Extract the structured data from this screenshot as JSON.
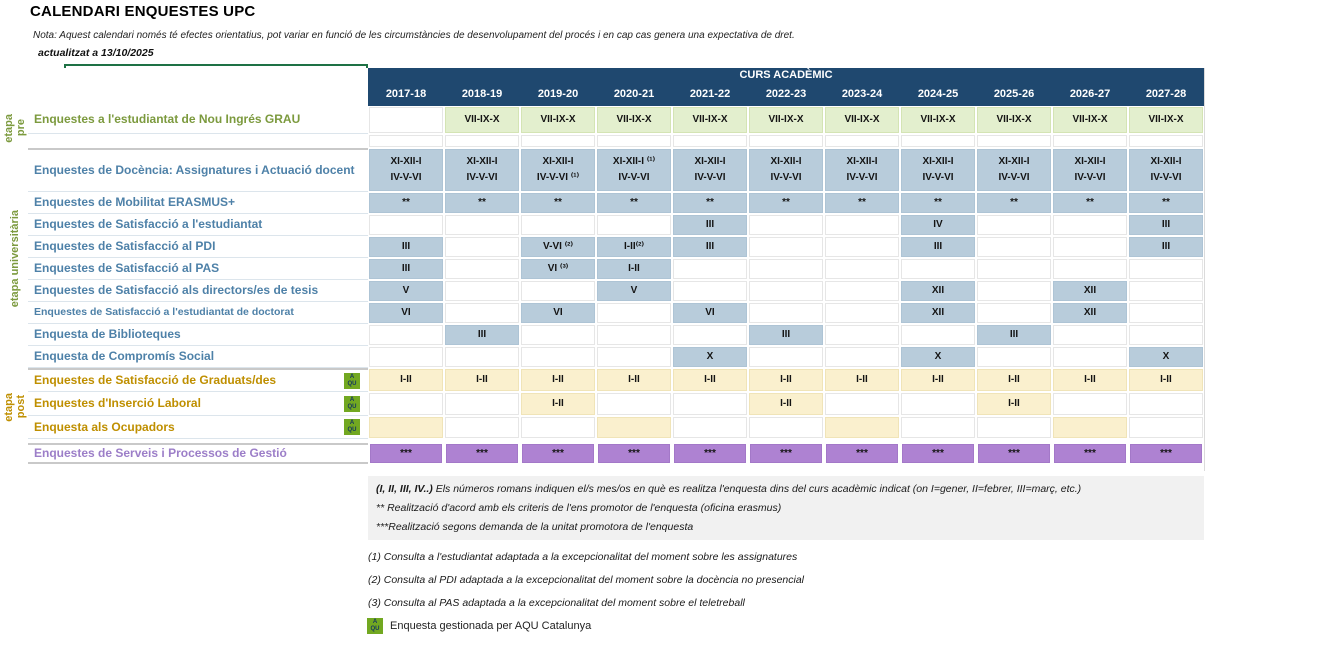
{
  "title": "CALENDARI ENQUESTES UPC",
  "note": "Nota: Aquest calendari només té efectes orientatius, pot variar en funció de les circumstàncies de desenvolupament del procés  i en cap cas genera una expectativa de dret.",
  "updated": "actualitzat a 13/10/2025",
  "colors": {
    "header_navy": "#1F486F",
    "cell_blue": "#B8CCDB",
    "cell_green": "#E3EFCE",
    "cell_beige": "#FAF0CE",
    "cell_purple": "#AE82D2",
    "label_green": "#7C9A3E",
    "label_blue": "#4E81A8",
    "label_gold": "#BF8F00",
    "label_purple": "#9C7EC8",
    "selection_green": "#1E7145",
    "aqu_badge_green": "#72A821"
  },
  "table": {
    "header": "CURS ACADÈMIC",
    "years": [
      "2017-18",
      "2018-19",
      "2019-20",
      "2020-21",
      "2021-22",
      "2022-23",
      "2023-24",
      "2024-25",
      "2025-26",
      "2026-27",
      "2027-28"
    ],
    "stages": [
      {
        "id": "pre",
        "lines": [
          "etapa",
          "pre"
        ],
        "color": "green"
      },
      {
        "id": "universitaria",
        "lines": [
          "etapa universitària"
        ],
        "color": "green"
      },
      {
        "id": "post",
        "lines": [
          "etapa",
          "post"
        ],
        "color": "gold"
      }
    ],
    "rows": [
      {
        "id": "nou-ingres",
        "label": "Enquestes a l'estudiantat de Nou Ingrés GRAU",
        "lcolor": "green",
        "rclass": "r-green",
        "cells": [
          {
            "t": "",
            "f": "w"
          },
          {
            "t": "VII-IX-X",
            "f": "g"
          },
          {
            "t": "VII-IX-X",
            "f": "g"
          },
          {
            "t": "VII-IX-X",
            "f": "g"
          },
          {
            "t": "VII-IX-X",
            "f": "g"
          },
          {
            "t": "VII-IX-X",
            "f": "g"
          },
          {
            "t": "VII-IX-X",
            "f": "g"
          },
          {
            "t": "VII-IX-X",
            "f": "g"
          },
          {
            "t": "VII-IX-X",
            "f": "g"
          },
          {
            "t": "VII-IX-X",
            "f": "g"
          },
          {
            "t": "VII-IX-X",
            "f": "g"
          }
        ]
      },
      {
        "id": "spacer",
        "label": "",
        "lcolor": "none",
        "rclass": "r-spacer",
        "spacer": true,
        "cells": [
          {
            "t": "",
            "f": "w"
          },
          {
            "t": "",
            "f": "w"
          },
          {
            "t": "",
            "f": "w"
          },
          {
            "t": "",
            "f": "w"
          },
          {
            "t": "",
            "f": "w"
          },
          {
            "t": "",
            "f": "w"
          },
          {
            "t": "",
            "f": "w"
          },
          {
            "t": "",
            "f": "w"
          },
          {
            "t": "",
            "f": "w"
          },
          {
            "t": "",
            "f": "w"
          },
          {
            "t": "",
            "f": "w"
          }
        ]
      },
      {
        "id": "docencia",
        "label": "Enquestes de Docència: Assignatures i Actuació docent",
        "lcolor": "blue",
        "rclass": "r-tall",
        "secTop": true,
        "cells": [
          {
            "t": "XI-XII-I\nIV-V-VI",
            "f": "b"
          },
          {
            "t": "XI-XII-I\nIV-V-VI",
            "f": "b"
          },
          {
            "t": "XI-XII-I\nIV-V-VI ⁽¹⁾",
            "f": "b"
          },
          {
            "t": "XI-XII-I ⁽¹⁾\nIV-V-VI",
            "f": "b"
          },
          {
            "t": "XI-XII-I\nIV-V-VI",
            "f": "b"
          },
          {
            "t": "XI-XII-I\nIV-V-VI",
            "f": "b"
          },
          {
            "t": "XI-XII-I\nIV-V-VI",
            "f": "b"
          },
          {
            "t": "XI-XII-I\nIV-V-VI",
            "f": "b"
          },
          {
            "t": "XI-XII-I\nIV-V-VI",
            "f": "b"
          },
          {
            "t": "XI-XII-I\nIV-V-VI",
            "f": "b"
          },
          {
            "t": "XI-XII-I\nIV-V-VI",
            "f": "b"
          }
        ]
      },
      {
        "id": "erasmus",
        "label": "Enquestes de Mobilitat ERASMUS+",
        "lcolor": "blue",
        "rclass": "r-std",
        "cells": [
          {
            "t": "**",
            "f": "b"
          },
          {
            "t": "**",
            "f": "b"
          },
          {
            "t": "**",
            "f": "b"
          },
          {
            "t": "**",
            "f": "b"
          },
          {
            "t": "**",
            "f": "b"
          },
          {
            "t": "**",
            "f": "b"
          },
          {
            "t": "**",
            "f": "b"
          },
          {
            "t": "**",
            "f": "b"
          },
          {
            "t": "**",
            "f": "b"
          },
          {
            "t": "**",
            "f": "b"
          },
          {
            "t": "**",
            "f": "b"
          }
        ]
      },
      {
        "id": "satisfaccio-estudiantat",
        "label": "Enquestes de Satisfacció a l'estudiantat",
        "lcolor": "blue",
        "rclass": "r-std",
        "cells": [
          {
            "t": "",
            "f": "w"
          },
          {
            "t": "",
            "f": "w"
          },
          {
            "t": "",
            "f": "w"
          },
          {
            "t": "",
            "f": "w"
          },
          {
            "t": "III",
            "f": "b"
          },
          {
            "t": "",
            "f": "w"
          },
          {
            "t": "",
            "f": "w"
          },
          {
            "t": "IV",
            "f": "b"
          },
          {
            "t": "",
            "f": "w"
          },
          {
            "t": "",
            "f": "w"
          },
          {
            "t": "III",
            "f": "b"
          }
        ]
      },
      {
        "id": "satisfaccio-pdi",
        "label": "Enquestes de Satisfacció al PDI",
        "lcolor": "blue",
        "rclass": "r-std",
        "cells": [
          {
            "t": "III",
            "f": "b"
          },
          {
            "t": "",
            "f": "w"
          },
          {
            "t": "V-VI ⁽²⁾",
            "f": "b"
          },
          {
            "t": "I-II⁽²⁾",
            "f": "b"
          },
          {
            "t": "III",
            "f": "b"
          },
          {
            "t": "",
            "f": "w"
          },
          {
            "t": "",
            "f": "w"
          },
          {
            "t": "III",
            "f": "b"
          },
          {
            "t": "",
            "f": "w"
          },
          {
            "t": "",
            "f": "w"
          },
          {
            "t": "III",
            "f": "b"
          }
        ]
      },
      {
        "id": "satisfaccio-pas",
        "label": "Enquestes de Satisfacció al PAS",
        "lcolor": "blue",
        "rclass": "r-std",
        "cells": [
          {
            "t": "III",
            "f": "b"
          },
          {
            "t": "",
            "f": "w"
          },
          {
            "t": "VI ⁽³⁾",
            "f": "b"
          },
          {
            "t": "I-II",
            "f": "b"
          },
          {
            "t": "",
            "f": "w"
          },
          {
            "t": "",
            "f": "w"
          },
          {
            "t": "",
            "f": "w"
          },
          {
            "t": "",
            "f": "w"
          },
          {
            "t": "",
            "f": "w"
          },
          {
            "t": "",
            "f": "w"
          },
          {
            "t": "",
            "f": "w"
          }
        ]
      },
      {
        "id": "directors-tesis",
        "label": "Enquestes de Satisfacció als directors/es de tesis",
        "lcolor": "blue",
        "rclass": "r-std",
        "cells": [
          {
            "t": "V",
            "f": "b"
          },
          {
            "t": "",
            "f": "w"
          },
          {
            "t": "",
            "f": "w"
          },
          {
            "t": "V",
            "f": "b"
          },
          {
            "t": "",
            "f": "w"
          },
          {
            "t": "",
            "f": "w"
          },
          {
            "t": "",
            "f": "w"
          },
          {
            "t": "XII",
            "f": "b"
          },
          {
            "t": "",
            "f": "w"
          },
          {
            "t": "XII",
            "f": "b"
          },
          {
            "t": "",
            "f": "w"
          }
        ]
      },
      {
        "id": "estudiantat-doctorat",
        "label": "Enquestes de Satisfacció a l'estudiantat de doctorat",
        "lcolor": "blue",
        "small": true,
        "rclass": "r-std",
        "cells": [
          {
            "t": "VI",
            "f": "b"
          },
          {
            "t": "",
            "f": "w"
          },
          {
            "t": "VI",
            "f": "b"
          },
          {
            "t": "",
            "f": "w"
          },
          {
            "t": "VI",
            "f": "b"
          },
          {
            "t": "",
            "f": "w"
          },
          {
            "t": "",
            "f": "w"
          },
          {
            "t": "XII",
            "f": "b"
          },
          {
            "t": "",
            "f": "w"
          },
          {
            "t": "XII",
            "f": "b"
          },
          {
            "t": "",
            "f": "w"
          }
        ]
      },
      {
        "id": "biblioteques",
        "label": "Enquesta de Biblioteques",
        "lcolor": "blue",
        "rclass": "r-std",
        "cells": [
          {
            "t": "",
            "f": "w"
          },
          {
            "t": "III",
            "f": "b"
          },
          {
            "t": "",
            "f": "w"
          },
          {
            "t": "",
            "f": "w"
          },
          {
            "t": "",
            "f": "w"
          },
          {
            "t": "III",
            "f": "b"
          },
          {
            "t": "",
            "f": "w"
          },
          {
            "t": "",
            "f": "w"
          },
          {
            "t": "III",
            "f": "b"
          },
          {
            "t": "",
            "f": "w"
          },
          {
            "t": "",
            "f": "w"
          }
        ]
      },
      {
        "id": "compromis-social",
        "label": "Enquesta de Compromís Social",
        "lcolor": "blue",
        "rclass": "r-std",
        "cells": [
          {
            "t": "",
            "f": "w"
          },
          {
            "t": "",
            "f": "w"
          },
          {
            "t": "",
            "f": "w"
          },
          {
            "t": "",
            "f": "w"
          },
          {
            "t": "X",
            "f": "b"
          },
          {
            "t": "",
            "f": "w"
          },
          {
            "t": "",
            "f": "w"
          },
          {
            "t": "X",
            "f": "b"
          },
          {
            "t": "",
            "f": "w"
          },
          {
            "t": "",
            "f": "w"
          },
          {
            "t": "X",
            "f": "b"
          }
        ]
      },
      {
        "id": "graduats",
        "label": "Enquestes de Satisfacció de Graduats/des",
        "lcolor": "gold",
        "aqu": true,
        "rclass": "r-beige",
        "secTop": true,
        "cells": [
          {
            "t": "I-II",
            "f": "y"
          },
          {
            "t": "I-II",
            "f": "y"
          },
          {
            "t": "I-II",
            "f": "y"
          },
          {
            "t": "I-II",
            "f": "y"
          },
          {
            "t": "I-II",
            "f": "y"
          },
          {
            "t": "I-II",
            "f": "y"
          },
          {
            "t": "I-II",
            "f": "y"
          },
          {
            "t": "I-II",
            "f": "y"
          },
          {
            "t": "I-II",
            "f": "y"
          },
          {
            "t": "I-II",
            "f": "y"
          },
          {
            "t": "I-II",
            "f": "y"
          }
        ]
      },
      {
        "id": "insercio-laboral",
        "label": "Enquestes d'Inserció Laboral",
        "lcolor": "gold",
        "aqu": true,
        "rclass": "r-beige",
        "cells": [
          {
            "t": "",
            "f": "w"
          },
          {
            "t": "",
            "f": "w"
          },
          {
            "t": "I-II",
            "f": "y"
          },
          {
            "t": "",
            "f": "w"
          },
          {
            "t": "",
            "f": "w"
          },
          {
            "t": "I-II",
            "f": "y"
          },
          {
            "t": "",
            "f": "w"
          },
          {
            "t": "",
            "f": "w"
          },
          {
            "t": "I-II",
            "f": "y"
          },
          {
            "t": "",
            "f": "w"
          },
          {
            "t": "",
            "f": "w"
          }
        ]
      },
      {
        "id": "ocupadors",
        "label": "Enquesta als Ocupadors",
        "lcolor": "gold",
        "aqu": true,
        "rclass": "r-ocu",
        "cells": [
          {
            "t": "",
            "f": "y"
          },
          {
            "t": "",
            "f": "w"
          },
          {
            "t": "",
            "f": "w"
          },
          {
            "t": "",
            "f": "y"
          },
          {
            "t": "",
            "f": "w"
          },
          {
            "t": "",
            "f": "w"
          },
          {
            "t": "",
            "f": "y"
          },
          {
            "t": "",
            "f": "w"
          },
          {
            "t": "",
            "f": "w"
          },
          {
            "t": "",
            "f": "y"
          },
          {
            "t": "",
            "f": "w"
          }
        ]
      },
      {
        "id": "serveis-gestio",
        "label": "Enquestes de Serveis i Processos de Gestió",
        "lcolor": "purple",
        "rclass": "r-purple",
        "secTop": true,
        "secBottom": true,
        "pgap": true,
        "cells": [
          {
            "t": "***",
            "f": "p"
          },
          {
            "t": "***",
            "f": "p"
          },
          {
            "t": "***",
            "f": "p"
          },
          {
            "t": "***",
            "f": "p"
          },
          {
            "t": "***",
            "f": "p"
          },
          {
            "t": "***",
            "f": "p"
          },
          {
            "t": "***",
            "f": "p"
          },
          {
            "t": "***",
            "f": "p"
          },
          {
            "t": "***",
            "f": "p"
          },
          {
            "t": "***",
            "f": "p"
          },
          {
            "t": "***",
            "f": "p"
          }
        ]
      }
    ]
  },
  "legend": {
    "roman_prefix": "(I, II, III, IV..)",
    "roman_rest": "  Els números romans indiquen el/s mes/os en què es realitza l'enquesta dins del curs acadèmic indicat (on I=gener, II=febrer, III=març, etc.)",
    "asterisk2": "** Realització d'acord amb els criteris de l'ens promotor de l'enquesta (oficina erasmus)",
    "asterisk3": "***Realització segons demanda de la unitat promotora de l'enquesta",
    "fn1": "(1) Consulta a l'estudiantat adaptada a la excepcionalitat del moment sobre les assignatures",
    "fn2": "(2) Consulta al PDI adaptada a la excepcionalitat del moment sobre la docència no presencial",
    "fn3": "(3) Consulta al PAS adaptada a la excepcionalitat del moment sobre el teletreball"
  },
  "aqu": {
    "badge_top": "A",
    "badge_bottom": "QU",
    "legend": "Enquesta gestionada per AQU Catalunya"
  }
}
